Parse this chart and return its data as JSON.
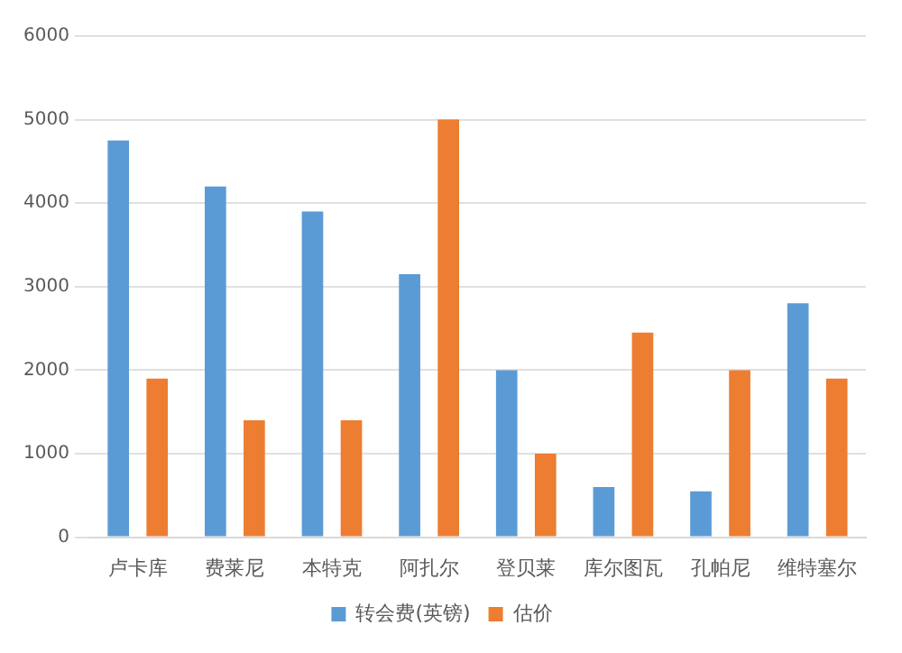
{
  "chart_data": {
    "type": "bar",
    "categories": [
      "卢卡库",
      "费莱尼",
      "本特克",
      "阿扎尔",
      "登贝莱",
      "库尔图瓦",
      "孔帕尼",
      "维特塞尔"
    ],
    "series": [
      {
        "name": "转会费(英镑)",
        "color": "#5b9bd5",
        "values": [
          4750,
          4200,
          3900,
          3150,
          2000,
          600,
          550,
          2800
        ]
      },
      {
        "name": "估价",
        "color": "#ed7d31",
        "values": [
          1900,
          1400,
          1400,
          5000,
          1000,
          2450,
          2000,
          1900
        ]
      }
    ],
    "ylim": [
      0,
      6000
    ],
    "yticks": [
      0,
      1000,
      2000,
      3000,
      4000,
      5000,
      6000
    ],
    "grid": "y",
    "legend": "bottom"
  }
}
